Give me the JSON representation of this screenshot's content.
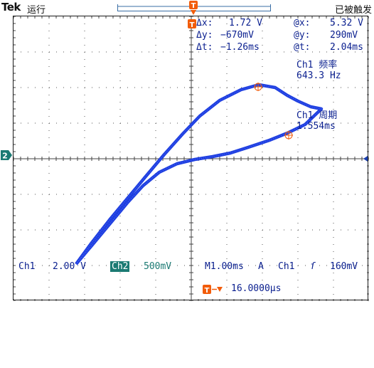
{
  "header": {
    "brand": "Tek",
    "run_status": "运行",
    "trigger_status": "已被触发"
  },
  "cursor_readout": {
    "dx_label": "Δx:",
    "dx_value": "1.72 V",
    "atx_label": "@x:",
    "atx_value": "5.32 V",
    "dy_label": "Δy:",
    "dy_value": "−670mV",
    "aty_label": "@y:",
    "aty_value": "290mV",
    "dt_label": "Δt:",
    "dt_value": "−1.26ms",
    "att_label": "@t:",
    "att_value": "2.04ms"
  },
  "measurements": [
    {
      "label": "Ch1 频率",
      "value": "643.3 Hz"
    },
    {
      "label": "Ch1 周期",
      "value": "1.554ms"
    }
  ],
  "bottom_bar": {
    "ch1_label": "Ch1",
    "ch1_scale": "2.00 V",
    "ch2_label": "Ch2",
    "ch2_scale": "500mV",
    "timebase": "M1.00ms",
    "trigger_mode": "A",
    "trigger_source": "Ch1",
    "trigger_slope": "ſ",
    "trigger_level": "160mV",
    "trigger_position": "16.0000µs"
  },
  "markers": {
    "ch2": "2",
    "trigger": "T"
  },
  "colors": {
    "trace": "#1f3fe0",
    "ch2": "#1b7a73",
    "trigger": "#f25c0a",
    "text": "#0a1f8f"
  }
}
